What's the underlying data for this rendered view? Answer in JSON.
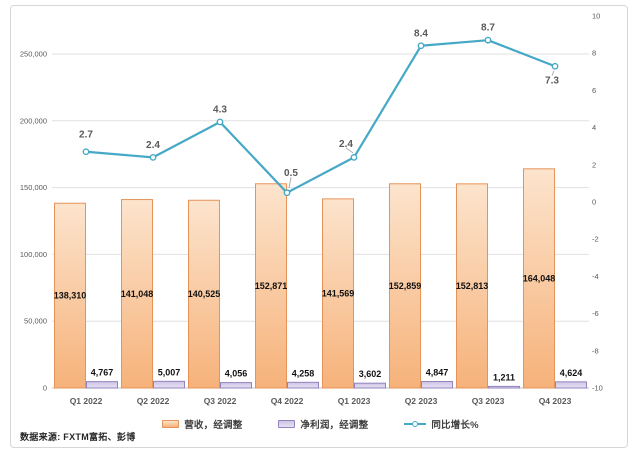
{
  "source_note": "数据来源: FXTM富拓、彭博",
  "colors": {
    "revenue_fill_top": "#FCE4CD",
    "revenue_fill_bottom": "#F6B27A",
    "revenue_border": "#E6935A",
    "profit_fill_top": "#CEC3E4",
    "profit_fill_bottom": "#E7E1F3",
    "profit_border": "#9184BE",
    "growth_line": "#45A8C6",
    "gridline": "#E0E0E0",
    "axis_line": "#C2C2C2",
    "axis_text": "#595959",
    "bar_label_text": "#111111",
    "line_label_text": "#595959"
  },
  "chart_data": {
    "type": "combo",
    "categories": [
      "Q1 2022",
      "Q2 2022",
      "Q3 2022",
      "Q4 2022",
      "Q1 2023",
      "Q2 2023",
      "Q3 2023",
      "Q4 2023"
    ],
    "series": [
      {
        "name": "营收，经调整",
        "type": "bar",
        "axis": "left",
        "values": [
          138310,
          141048,
          140525,
          152871,
          141569,
          152859,
          152813,
          164048
        ],
        "labels": [
          "138,310",
          "141,048",
          "140,525",
          "152,871",
          "141,569",
          "152,859",
          "152,813",
          "164,048"
        ]
      },
      {
        "name": "净利润，经调整",
        "type": "bar",
        "axis": "left",
        "values": [
          4767,
          5007,
          4056,
          4258,
          3602,
          4847,
          1211,
          4624
        ],
        "labels": [
          "4,767",
          "5,007",
          "4,056",
          "4,258",
          "3,602",
          "4,847",
          "1,211",
          "4,624"
        ]
      },
      {
        "name": "同比增长%",
        "type": "line",
        "axis": "right",
        "values": [
          2.7,
          2.4,
          4.3,
          0.5,
          2.4,
          8.4,
          8.7,
          7.3
        ],
        "labels": [
          "2.7",
          "2.4",
          "4.3",
          "0.5",
          "2.4",
          "8.4",
          "8.7",
          "7.3"
        ]
      }
    ],
    "left_axis": {
      "min": 0,
      "max": 250000,
      "tick_step": 50000,
      "ticks": [
        "0",
        "50,000",
        "100,000",
        "150,000",
        "200,000",
        "250,000"
      ]
    },
    "right_axis": {
      "min": -10,
      "max": 10,
      "tick_step": 2,
      "ticks": [
        "10",
        "8",
        "6",
        "4",
        "2",
        "0",
        "-2",
        "-4",
        "-6",
        "-8",
        "-10"
      ]
    },
    "grid": true,
    "legend_position": "bottom"
  }
}
